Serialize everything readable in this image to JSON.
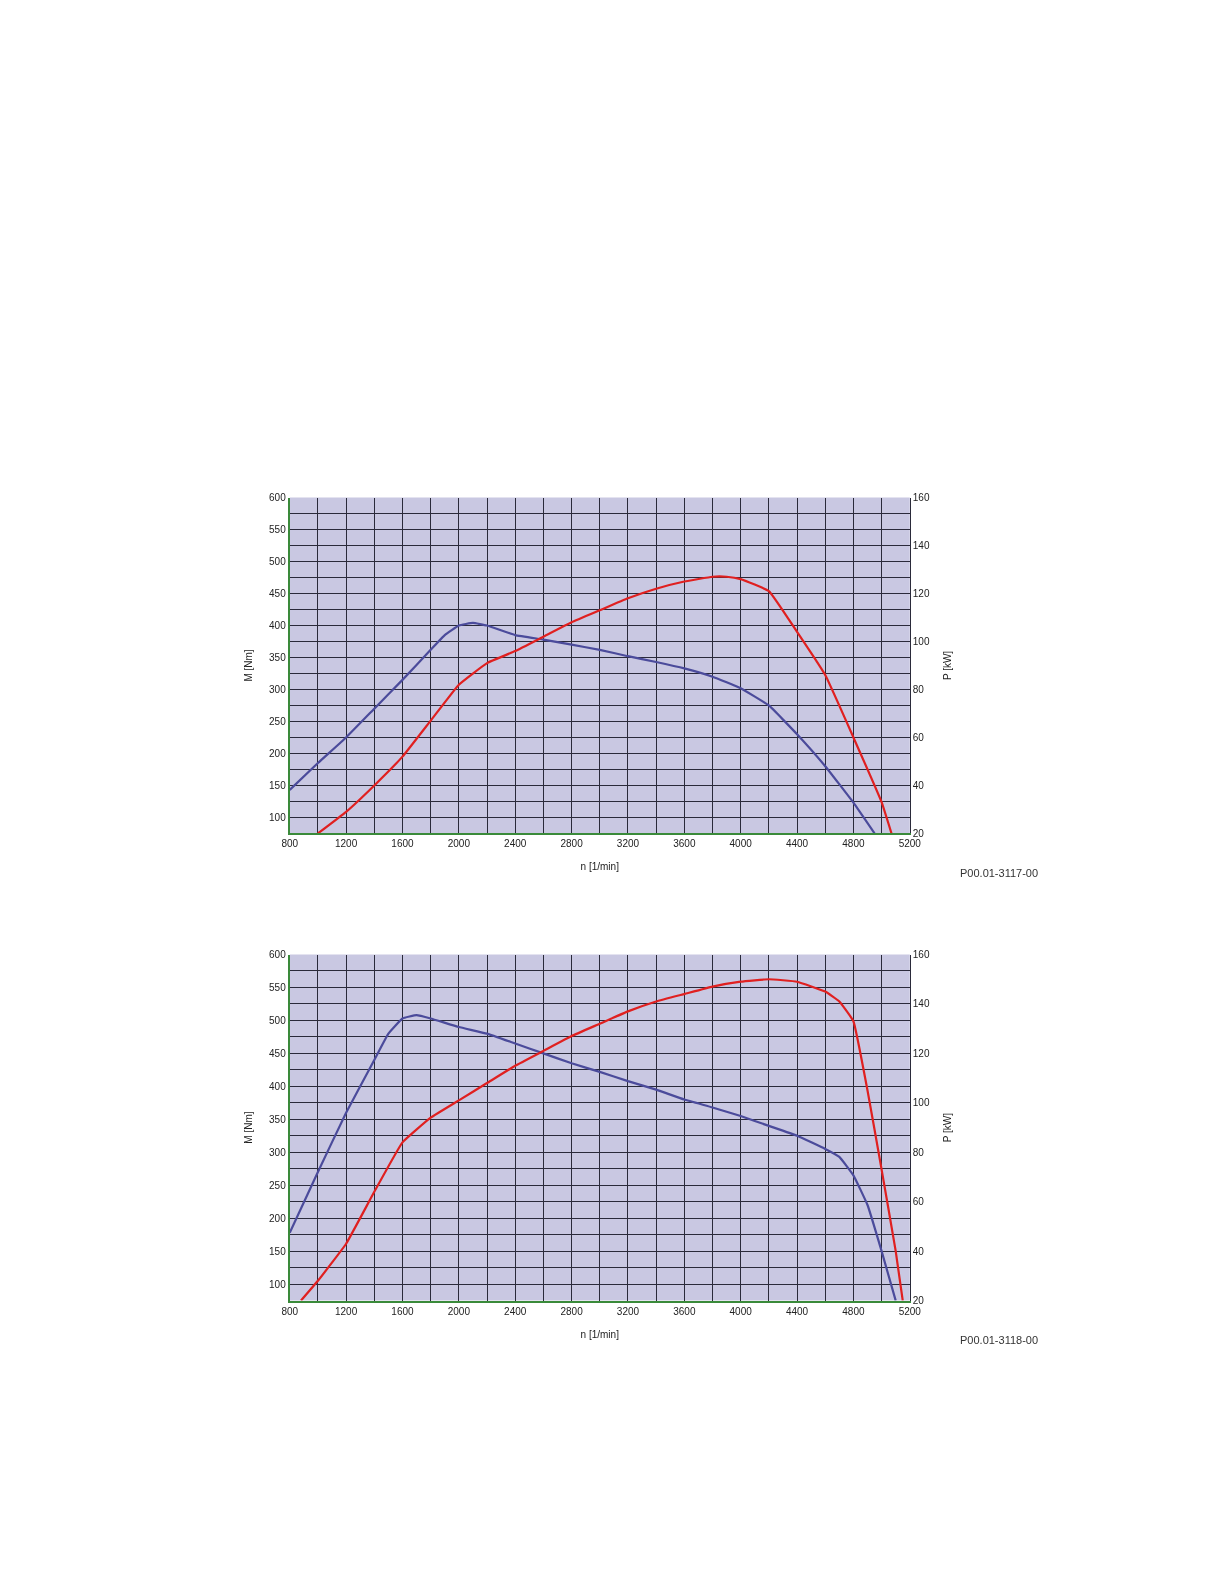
{
  "chart_data": [
    {
      "type": "line",
      "xlabel": "n [1/min]",
      "ylabel": "M [Nm]",
      "y2label": "P [kW]",
      "annotations": [
        "P00.01-3117-00"
      ],
      "grid": true,
      "marker": "none",
      "line_style": "solid",
      "xlim": [
        800,
        5200
      ],
      "ylim": [
        75,
        600
      ],
      "y2lim": [
        20,
        160
      ],
      "xticks": [
        800,
        {
          "value": 1000,
          "label": null
        },
        1200,
        {
          "value": 1400,
          "label": null
        },
        1600,
        {
          "value": 1800,
          "label": null
        },
        2000,
        {
          "value": 2200,
          "label": null
        },
        2400,
        {
          "value": 2600,
          "label": null
        },
        2800,
        {
          "value": 3000,
          "label": null
        },
        3200,
        {
          "value": 3400,
          "label": null
        },
        3600,
        {
          "value": 3800,
          "label": null
        },
        4000,
        {
          "value": 4200,
          "label": null
        },
        4400,
        {
          "value": 4600,
          "label": null
        },
        4800,
        {
          "value": 5000,
          "label": null
        },
        5200
      ],
      "yticks": [
        {
          "value": 75,
          "label": null
        },
        100,
        {
          "value": 125,
          "label": null
        },
        150,
        {
          "value": 175,
          "label": null
        },
        200,
        {
          "value": 225,
          "label": null
        },
        250,
        {
          "value": 275,
          "label": null
        },
        300,
        {
          "value": 325,
          "label": null
        },
        350,
        {
          "value": 375,
          "label": null
        },
        400,
        {
          "value": 425,
          "label": null
        },
        450,
        {
          "value": 475,
          "label": null
        },
        500,
        {
          "value": 525,
          "label": null
        },
        550,
        {
          "value": 575,
          "label": null
        },
        600
      ],
      "y2ticks": [
        20,
        40,
        60,
        80,
        100,
        120,
        140,
        160
      ],
      "series": [
        {
          "color": "#4b4b9b",
          "x": [
            800,
            1000,
            1200,
            1400,
            1600,
            1800,
            1900,
            2000,
            2100,
            2200,
            2400,
            2600,
            2800,
            3000,
            3200,
            3400,
            3600,
            3800,
            4000,
            4200,
            4400,
            4600,
            4800,
            4950
          ],
          "values": [
            143,
            185,
            225,
            270,
            315,
            362,
            385,
            400,
            404,
            400,
            385,
            378,
            370,
            362,
            352,
            343,
            333,
            320,
            302,
            275,
            230,
            180,
            123,
            75
          ]
        },
        {
          "color": "#e02020",
          "axis": "y2",
          "x": [
            1000,
            1200,
            1400,
            1600,
            1800,
            2000,
            2200,
            2400,
            2600,
            2800,
            3000,
            3200,
            3400,
            3600,
            3800,
            3900,
            4000,
            4200,
            4400,
            4600,
            4800,
            5000,
            5070
          ],
          "values": [
            20,
            29,
            40,
            52,
            67,
            82,
            91,
            96,
            102,
            108,
            113,
            118,
            122,
            125,
            127,
            127,
            126,
            121,
            104,
            86,
            60,
            33,
            20
          ]
        }
      ]
    },
    {
      "type": "line",
      "xlabel": "n [1/min]",
      "ylabel": "M [Nm]",
      "y2label": "P [kW]",
      "annotations": [
        "P00.01-3118-00"
      ],
      "grid": true,
      "marker": "none",
      "line_style": "solid",
      "xlim": [
        800,
        5200
      ],
      "ylim": [
        75,
        600
      ],
      "y2lim": [
        20,
        160
      ],
      "xticks": [
        800,
        {
          "value": 1000,
          "label": null
        },
        1200,
        {
          "value": 1400,
          "label": null
        },
        1600,
        {
          "value": 1800,
          "label": null
        },
        2000,
        {
          "value": 2200,
          "label": null
        },
        2400,
        {
          "value": 2600,
          "label": null
        },
        2800,
        {
          "value": 3000,
          "label": null
        },
        3200,
        {
          "value": 3400,
          "label": null
        },
        3600,
        {
          "value": 3800,
          "label": null
        },
        4000,
        {
          "value": 4200,
          "label": null
        },
        4400,
        {
          "value": 4600,
          "label": null
        },
        4800,
        {
          "value": 5000,
          "label": null
        },
        5200
      ],
      "yticks": [
        {
          "value": 75,
          "label": null
        },
        100,
        {
          "value": 125,
          "label": null
        },
        150,
        {
          "value": 175,
          "label": null
        },
        200,
        {
          "value": 225,
          "label": null
        },
        250,
        {
          "value": 275,
          "label": null
        },
        300,
        {
          "value": 325,
          "label": null
        },
        350,
        {
          "value": 375,
          "label": null
        },
        400,
        {
          "value": 425,
          "label": null
        },
        450,
        {
          "value": 475,
          "label": null
        },
        500,
        {
          "value": 525,
          "label": null
        },
        550,
        {
          "value": 575,
          "label": null
        },
        600
      ],
      "y2ticks": [
        20,
        40,
        60,
        80,
        100,
        120,
        140,
        160
      ],
      "series": [
        {
          "color": "#4b4b9b",
          "x": [
            800,
            1000,
            1200,
            1400,
            1500,
            1600,
            1700,
            1800,
            2000,
            2200,
            2400,
            2600,
            2800,
            3000,
            3200,
            3400,
            3600,
            3800,
            4000,
            4200,
            4400,
            4600,
            4700,
            4800,
            4900,
            5000,
            5100
          ],
          "values": [
            178,
            270,
            360,
            440,
            480,
            503,
            508,
            503,
            490,
            480,
            465,
            450,
            435,
            422,
            408,
            395,
            380,
            368,
            355,
            340,
            325,
            305,
            293,
            265,
            220,
            150,
            75
          ]
        },
        {
          "color": "#e02020",
          "axis": "y2",
          "x": [
            880,
            1000,
            1200,
            1400,
            1600,
            1800,
            2000,
            2200,
            2400,
            2600,
            2800,
            3000,
            3200,
            3400,
            3600,
            3800,
            4000,
            4200,
            4400,
            4600,
            4700,
            4800,
            4900,
            5000,
            5100,
            5150
          ],
          "values": [
            20,
            28,
            43,
            64,
            84,
            94,
            101,
            108,
            115,
            121,
            127,
            132,
            137,
            141,
            144,
            147,
            149,
            150,
            149,
            145,
            141,
            133,
            105,
            73,
            40,
            20
          ]
        }
      ]
    }
  ]
}
